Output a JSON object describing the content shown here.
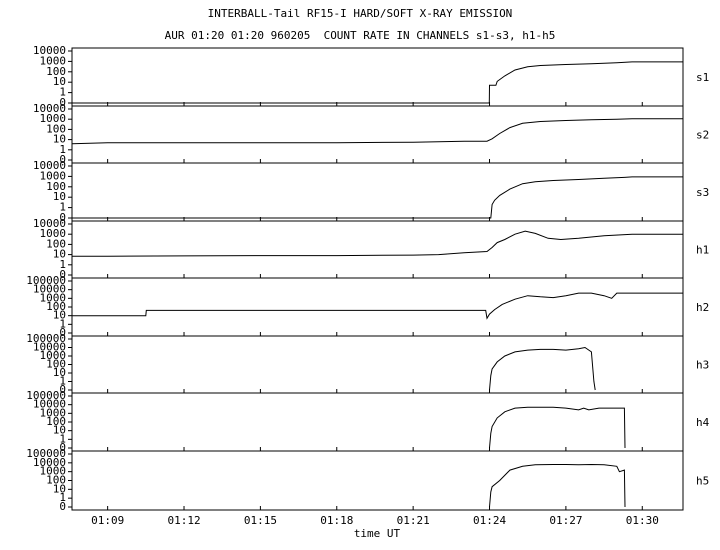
{
  "page": {
    "title": "INTERBALL-Tail RF15-I HARD/SOFT X-RAY EMISSION",
    "subtitle": "AUR 01:20 01:20 960205  COUNT RATE IN CHANNELS s1-s3, h1-h5"
  },
  "chart_data": {
    "type": "line",
    "title": "INTERBALL-Tail RF15-I HARD/SOFT X-RAY EMISSION",
    "subtitle": "AUR 01:20 01:20 960205  COUNT RATE IN CHANNELS s1-s3, h1-h5",
    "xlabel": "time UT",
    "x_unit": "minutes after 01:00 UT",
    "x_ticks": [
      {
        "value": 9,
        "label": "01:09"
      },
      {
        "value": 12,
        "label": "01:12"
      },
      {
        "value": 15,
        "label": "01:15"
      },
      {
        "value": 18,
        "label": "01:18"
      },
      {
        "value": 21,
        "label": "01:21"
      },
      {
        "value": 24,
        "label": "01:24"
      },
      {
        "value": 27,
        "label": "01:27"
      },
      {
        "value": 30,
        "label": "01:30"
      }
    ],
    "xlim": [
      7.6,
      31.6
    ],
    "y_scale": "log",
    "y_ticks_small": [
      "10000",
      "1000",
      "100",
      "10",
      "1",
      "0"
    ],
    "y_ticks_large": [
      "100000",
      "10000",
      "1000",
      "100",
      "10",
      "1",
      "0"
    ],
    "series": [
      {
        "name": "s1",
        "y_ticks": "small",
        "ylim": [
          0.1,
          10000
        ],
        "x": [
          7.6,
          23.99,
          24.0,
          24.25,
          24.3,
          24.6,
          25.0,
          25.5,
          26.0,
          27.0,
          28.0,
          29.0,
          29.6,
          31.6
        ],
        "y": [
          0.1,
          0.1,
          5,
          5,
          12,
          40,
          150,
          300,
          400,
          500,
          600,
          750,
          900,
          900
        ]
      },
      {
        "name": "s2",
        "y_ticks": "small",
        "ylim": [
          0.1,
          10000
        ],
        "x": [
          7.6,
          9,
          12,
          15,
          18,
          21,
          23.0,
          23.9,
          24.1,
          24.4,
          24.8,
          25.3,
          26.0,
          27.0,
          28.0,
          29.0,
          29.6,
          31.6
        ],
        "y": [
          4,
          5,
          5,
          5,
          5,
          5.5,
          7,
          7,
          12,
          40,
          150,
          400,
          600,
          750,
          900,
          1000,
          1100,
          1100
        ]
      },
      {
        "name": "s3",
        "y_ticks": "small",
        "ylim": [
          0.1,
          10000
        ],
        "x": [
          7.6,
          24.05,
          24.1,
          24.2,
          24.4,
          24.8,
          25.3,
          25.8,
          26.5,
          27.5,
          28.5,
          29.3,
          29.6,
          31.6
        ],
        "y": [
          0.1,
          0.1,
          2,
          5,
          15,
          60,
          200,
          300,
          400,
          500,
          650,
          800,
          900,
          900
        ]
      },
      {
        "name": "h1",
        "y_ticks": "small",
        "ylim": [
          0.1,
          10000
        ],
        "x": [
          7.6,
          9,
          12,
          15,
          18,
          21,
          22,
          23,
          23.9,
          24.1,
          24.3,
          24.6,
          25.0,
          25.4,
          25.8,
          26.3,
          26.8,
          27.5,
          28.5,
          29.6,
          31.6
        ],
        "y": [
          7,
          7,
          7.5,
          8,
          8,
          9,
          10,
          15,
          20,
          50,
          150,
          300,
          1000,
          2000,
          1200,
          400,
          300,
          400,
          700,
          1000,
          1000
        ]
      },
      {
        "name": "h2",
        "y_ticks": "large",
        "ylim": [
          0.1,
          100000
        ],
        "x": [
          7.6,
          10.5,
          10.52,
          23.85,
          23.9,
          24.0,
          24.2,
          24.5,
          25.0,
          25.5,
          26.0,
          26.5,
          27.0,
          27.5,
          28.0,
          28.5,
          28.8,
          29.0,
          29.6,
          31.6
        ],
        "y": [
          10,
          10,
          40,
          40,
          5,
          15,
          50,
          200,
          800,
          2000,
          1500,
          1200,
          2000,
          4000,
          4000,
          2000,
          1000,
          4000,
          4000,
          4000
        ]
      },
      {
        "name": "h3",
        "y_ticks": "large",
        "ylim": [
          0.1,
          100000
        ],
        "x": [
          24.0,
          24.05,
          24.1,
          24.3,
          24.6,
          25.0,
          25.5,
          26.0,
          26.5,
          27.0,
          27.5,
          27.75,
          28.0,
          28.1,
          28.15
        ],
        "y": [
          0.1,
          5,
          30,
          200,
          1000,
          3000,
          5000,
          6000,
          6000,
          5000,
          7000,
          10000,
          3000,
          1,
          0.1
        ]
      },
      {
        "name": "h4",
        "y_ticks": "large",
        "ylim": [
          0.1,
          100000
        ],
        "x": [
          24.0,
          24.05,
          24.1,
          24.3,
          24.6,
          25.0,
          25.5,
          26.0,
          26.5,
          27.0,
          27.5,
          27.7,
          27.9,
          28.3,
          29.0,
          29.3,
          29.32
        ],
        "y": [
          0.1,
          5,
          30,
          300,
          1500,
          4000,
          5000,
          5000,
          5000,
          4000,
          2500,
          4000,
          2500,
          4000,
          4000,
          4000,
          0.1
        ]
      },
      {
        "name": "h5",
        "y_ticks": "large",
        "ylim": [
          0.1,
          100000
        ],
        "x": [
          24.0,
          24.05,
          24.1,
          24.4,
          24.8,
          25.3,
          25.8,
          26.5,
          27.0,
          27.5,
          28.0,
          28.5,
          29.0,
          29.1,
          29.3,
          29.32
        ],
        "y": [
          0.1,
          5,
          20,
          100,
          1500,
          4000,
          6000,
          6500,
          6500,
          6000,
          6500,
          6000,
          4000,
          1000,
          1500,
          0.1
        ]
      }
    ]
  }
}
